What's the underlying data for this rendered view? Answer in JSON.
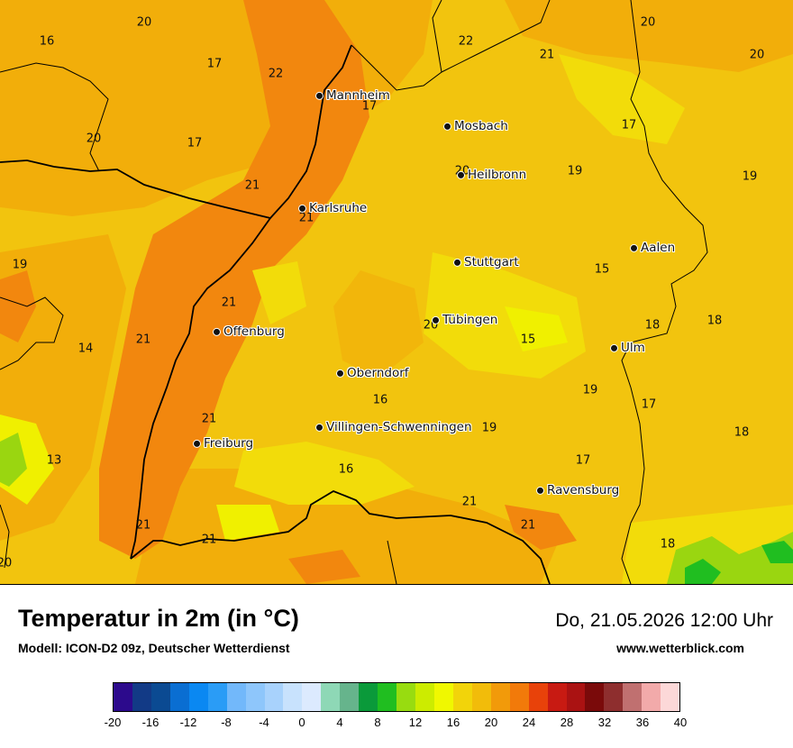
{
  "title": "Temperatur in 2m (in °C)",
  "model": "Modell: ICON-D2 09z, Deutscher Wetterdienst",
  "datetime": "Do, 21.05.2026 12:00 Uhr",
  "website": "www.wetterblick.com",
  "legend": {
    "colors": [
      "#2c0a8c",
      "#123a86",
      "#0b4a92",
      "#0a6ed2",
      "#0a88f2",
      "#2a9cf6",
      "#72b8fa",
      "#8ec6fb",
      "#a8d2fc",
      "#c8e2fd",
      "#dceafe",
      "#8ed8b6",
      "#66b48c",
      "#0a9a3a",
      "#20be20",
      "#98dc10",
      "#ccec00",
      "#f0f800",
      "#f2d40a",
      "#f2bc0a",
      "#f29a0a",
      "#f27a0a",
      "#e8420a",
      "#c81a12",
      "#aa1212",
      "#7a0a0a",
      "#8e2e2e",
      "#c07070",
      "#f2aaaa",
      "#fcd8d8"
    ],
    "tick_labels": [
      "-20",
      "-16",
      "-12",
      "-8",
      "-4",
      "0",
      "4",
      "8",
      "12",
      "16",
      "20",
      "24",
      "28",
      "32",
      "36",
      "40"
    ]
  },
  "cities": [
    {
      "name": "Mannheim"
    },
    {
      "name": "Mosbach"
    },
    {
      "name": "Heilbronn"
    },
    {
      "name": "Karlsruhe"
    },
    {
      "name": "Aalen"
    },
    {
      "name": "Stuttgart"
    },
    {
      "name": "Tübingen"
    },
    {
      "name": "Offenburg"
    },
    {
      "name": "Ulm"
    },
    {
      "name": "Oberndorf"
    },
    {
      "name": "Villingen-Schwenningen"
    },
    {
      "name": "Freiburg"
    },
    {
      "name": "Ravensburg"
    }
  ],
  "temps": [
    "20",
    "16",
    "17",
    "22",
    "22",
    "21",
    "20",
    "20",
    "17",
    "20",
    "17",
    "21",
    "20",
    "17",
    "19",
    "19",
    "21",
    "15",
    "19",
    "21",
    "18",
    "18",
    "14",
    "21",
    "20",
    "15",
    "16",
    "19",
    "17",
    "21",
    "19",
    "18",
    "13",
    "17",
    "16",
    "21",
    "21",
    "21",
    "21",
    "18",
    "20"
  ]
}
